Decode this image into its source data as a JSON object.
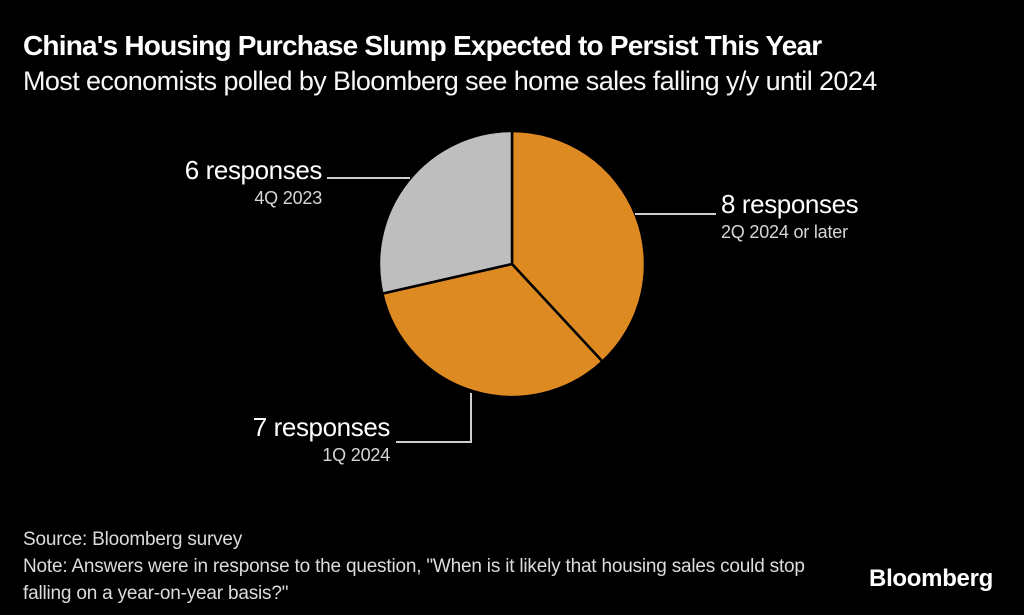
{
  "header": {
    "title": "China's Housing Purchase Slump Expected to Persist This Year",
    "subtitle": "Most economists polled by Bloomberg see home sales falling y/y until 2024"
  },
  "chart_data": {
    "type": "pie",
    "title": "China's Housing Purchase Slump Expected to Persist This Year",
    "subtitle": "Most economists polled by Bloomberg see home sales falling y/y until 2024",
    "total_responses": 21,
    "start_angle_deg": 0,
    "direction": "clockwise",
    "background_color": "#000000",
    "slice_divider_color": "#000000",
    "leader_line_color": "#cfcfcf",
    "slices": [
      {
        "label": "8 responses",
        "sublabel": "2Q 2024 or later",
        "value": 8,
        "color": "#DD8A22"
      },
      {
        "label": "7 responses",
        "sublabel": "1Q 2024",
        "value": 7,
        "color": "#DD8A22"
      },
      {
        "label": "6 responses",
        "sublabel": "4Q 2023",
        "value": 6,
        "color": "#BEBEBE"
      }
    ]
  },
  "footer": {
    "source": "Source: Bloomberg survey",
    "note": "Note: Answers were in response to the question, \"When is it likely that housing sales could stop falling on a year-on-year basis?\"",
    "logo": "Bloomberg"
  }
}
